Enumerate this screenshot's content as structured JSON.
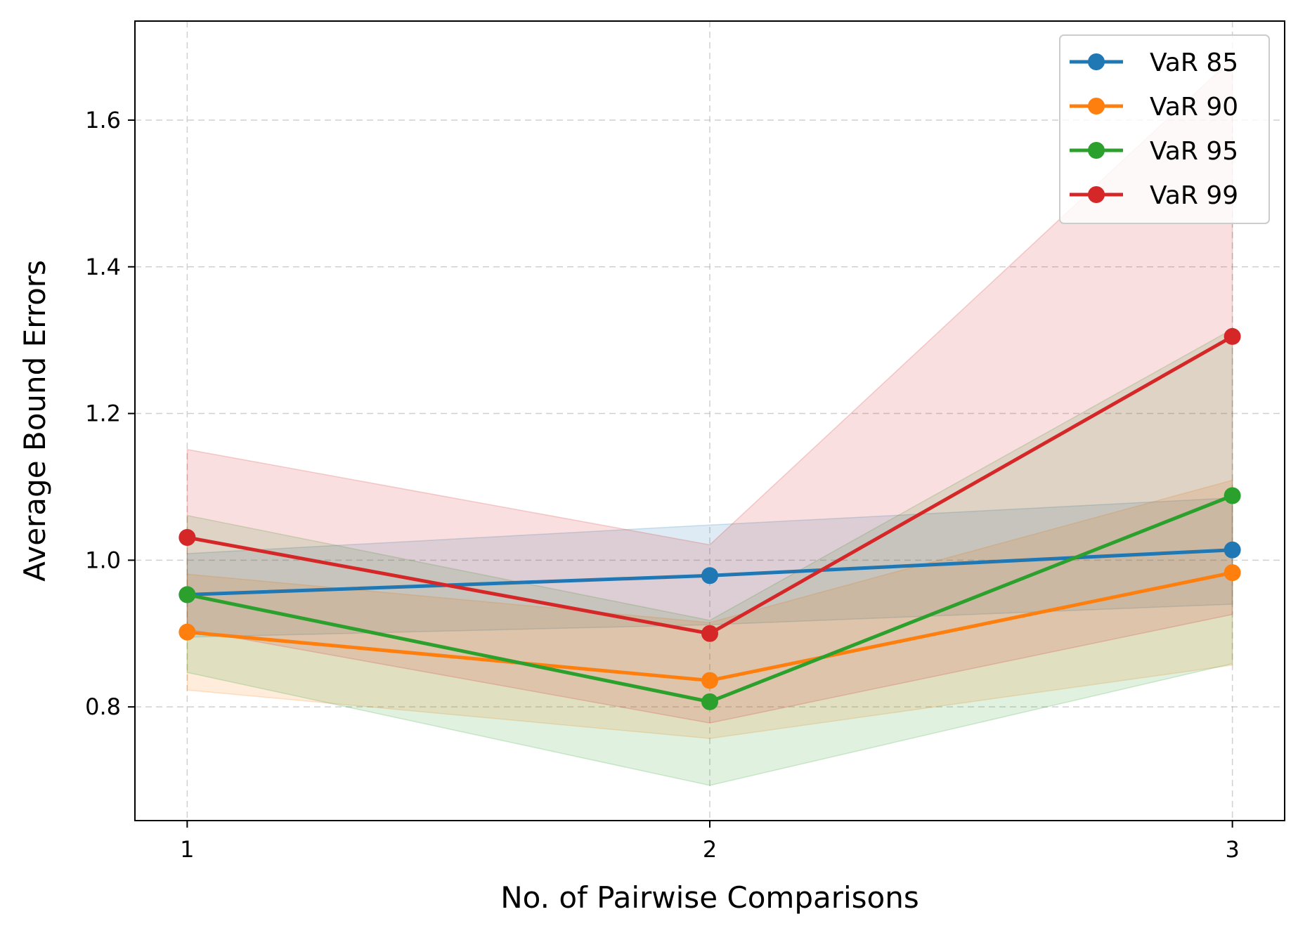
{
  "chart_data": {
    "type": "line",
    "xlabel": "No. of Pairwise Comparisons",
    "ylabel": "Average Bound Errors",
    "x": [
      1,
      2,
      3
    ],
    "x_ticks": [
      "1",
      "2",
      "3"
    ],
    "y_ticks": [
      "0.8",
      "1.0",
      "1.2",
      "1.4",
      "1.6"
    ],
    "y_tick_values": [
      0.8,
      1.0,
      1.2,
      1.4,
      1.6
    ],
    "xlim": [
      0.9,
      3.1
    ],
    "ylim": [
      0.645,
      1.735
    ],
    "grid": true,
    "legend_position": "top-right",
    "series": [
      {
        "name": "VaR 85",
        "color": "#1f77b4",
        "values": [
          0.953,
          0.979,
          1.014
        ],
        "lower": [
          0.895,
          0.912,
          0.94
        ],
        "upper": [
          1.009,
          1.048,
          1.085
        ]
      },
      {
        "name": "VaR 90",
        "color": "#ff7f0e",
        "values": [
          0.902,
          0.836,
          0.983
        ],
        "lower": [
          0.823,
          0.757,
          0.857
        ],
        "upper": [
          0.981,
          0.915,
          1.109
        ]
      },
      {
        "name": "VaR 95",
        "color": "#2ca02c",
        "values": [
          0.953,
          0.807,
          1.088
        ],
        "lower": [
          0.847,
          0.693,
          0.859
        ],
        "upper": [
          1.061,
          0.918,
          1.315
        ]
      },
      {
        "name": "VaR 99",
        "color": "#d62728",
        "values": [
          1.031,
          0.9,
          1.305
        ],
        "lower": [
          0.906,
          0.778,
          0.926
        ],
        "upper": [
          1.151,
          1.021,
          1.684
        ]
      }
    ]
  }
}
